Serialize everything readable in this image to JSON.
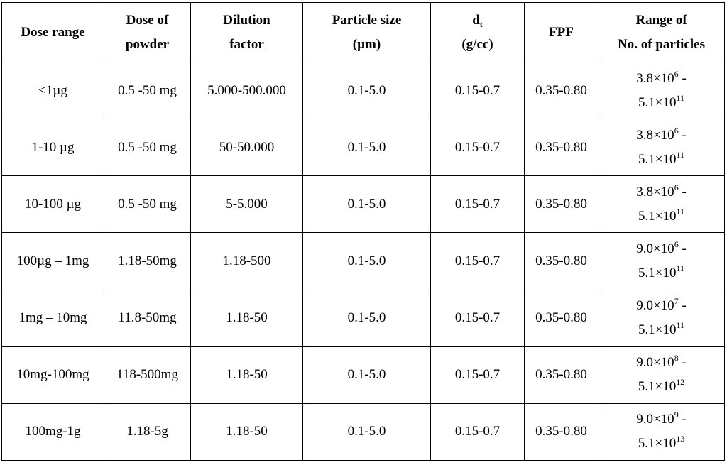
{
  "table": {
    "headers": [
      {
        "line1": "Dose range",
        "line2": ""
      },
      {
        "line1": "Dose of",
        "line2": "powder"
      },
      {
        "line1": "Dilution",
        "line2": "factor"
      },
      {
        "line1": "Particle size",
        "line2": "(µm)"
      },
      {
        "line1_base": "d",
        "line1_sub": "t",
        "line2": "(g/cc)"
      },
      {
        "line1": "FPF",
        "line2": ""
      },
      {
        "line1": "Range of",
        "line2": "No. of particles"
      }
    ],
    "rows": [
      {
        "dose_range": "<1µg",
        "dose_of_powder": "0.5 -50 mg",
        "dilution_factor": "5.000-500.000",
        "particle_size": "0.1-5.0",
        "dt": "0.15-0.7",
        "fpf": "0.35-0.80",
        "n_low_base": "3.8×10",
        "n_low_exp": "6",
        "n_high_base": "5.1×10",
        "n_high_exp": "11"
      },
      {
        "dose_range": "1-10 µg",
        "dose_of_powder": "0.5 -50 mg",
        "dilution_factor": "50-50.000",
        "particle_size": "0.1-5.0",
        "dt": "0.15-0.7",
        "fpf": "0.35-0.80",
        "n_low_base": "3.8×10",
        "n_low_exp": "6",
        "n_high_base": "5.1×10",
        "n_high_exp": "11"
      },
      {
        "dose_range": "10-100 µg",
        "dose_of_powder": "0.5 -50 mg",
        "dilution_factor": "5-5.000",
        "particle_size": "0.1-5.0",
        "dt": "0.15-0.7",
        "fpf": "0.35-0.80",
        "n_low_base": "3.8×10",
        "n_low_exp": "6",
        "n_high_base": "5.1×10",
        "n_high_exp": "11"
      },
      {
        "dose_range": "100µg – 1mg",
        "dose_of_powder": "1.18-50mg",
        "dilution_factor": "1.18-500",
        "particle_size": "0.1-5.0",
        "dt": "0.15-0.7",
        "fpf": "0.35-0.80",
        "n_low_base": "9.0×10",
        "n_low_exp": "6",
        "n_high_base": "5.1×10",
        "n_high_exp": "11"
      },
      {
        "dose_range": "1mg – 10mg",
        "dose_of_powder": "11.8-50mg",
        "dilution_factor": "1.18-50",
        "particle_size": "0.1-5.0",
        "dt": "0.15-0.7",
        "fpf": "0.35-0.80",
        "n_low_base": "9.0×10",
        "n_low_exp": "7",
        "n_high_base": "5.1×10",
        "n_high_exp": "11"
      },
      {
        "dose_range": "10mg-100mg",
        "dose_of_powder": "118-500mg",
        "dilution_factor": "1.18-50",
        "particle_size": "0.1-5.0",
        "dt": "0.15-0.7",
        "fpf": "0.35-0.80",
        "n_low_base": "9.0×10",
        "n_low_exp": "8",
        "n_high_base": "5.1×10",
        "n_high_exp": "12"
      },
      {
        "dose_range": "100mg-1g",
        "dose_of_powder": "1.18-5g",
        "dilution_factor": "1.18-50",
        "particle_size": "0.1-5.0",
        "dt": "0.15-0.7",
        "fpf": "0.35-0.80",
        "n_low_base": "9.0×10",
        "n_low_exp": "9",
        "n_high_base": "5.1×10",
        "n_high_exp": "13"
      }
    ]
  }
}
